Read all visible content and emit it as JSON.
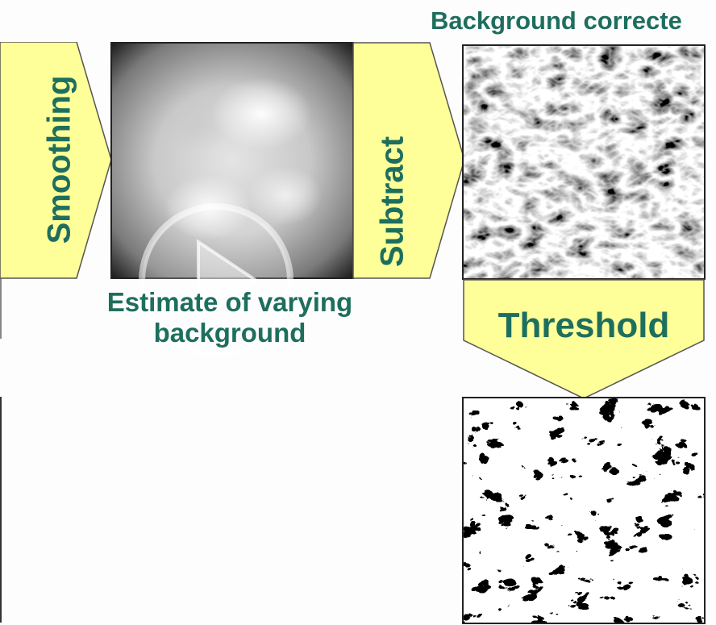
{
  "labels": {
    "smoothing": "Smoothing",
    "subtract": "Subtract",
    "threshold": "Threshold",
    "estimate_line1": "Estimate of varying",
    "estimate_line2": "background",
    "background_corrected": "Background correcte"
  },
  "colors": {
    "arrow_fill": "#ffff99",
    "arrow_stroke": "#555555",
    "label_text": "#1e6e5e",
    "play_overlay": "#ffffff"
  },
  "icons": {
    "play_overlay": "play-icon"
  }
}
